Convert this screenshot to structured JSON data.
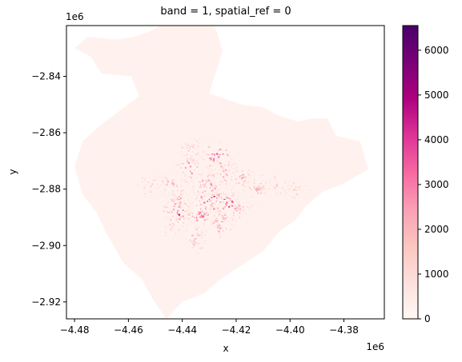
{
  "chart_data": {
    "type": "heatmap",
    "title": "band = 1, spatial_ref = 0",
    "xlabel": "x",
    "ylabel": "y",
    "x_offset": "1e6",
    "y_offset": "1e6",
    "xlim": [
      -4.483,
      -4.365
    ],
    "ylim": [
      -2.926,
      -2.822
    ],
    "x_ticks": [
      -4.48,
      -4.46,
      -4.44,
      -4.42,
      -4.4,
      -4.38
    ],
    "x_tick_labels": [
      "−4.48",
      "−4.46",
      "−4.44",
      "−4.42",
      "−4.40",
      "−4.38"
    ],
    "y_ticks": [
      -2.84,
      -2.86,
      -2.88,
      -2.9,
      -2.92
    ],
    "y_tick_labels": [
      "−2.84",
      "−2.86",
      "−2.88",
      "−2.90",
      "−2.92"
    ],
    "colorbar": {
      "min": 0,
      "max": 6550,
      "ticks": [
        0,
        1000,
        2000,
        3000,
        4000,
        5000,
        6000
      ],
      "tick_labels": [
        "0",
        "1000",
        "2000",
        "3000",
        "4000",
        "5000",
        "6000"
      ],
      "colors": [
        "#fff7f3",
        "#fde0dd",
        "#fcc5c0",
        "#fa9fb5",
        "#f768a1",
        "#dd3497",
        "#ae017e",
        "#7a0177",
        "#49006a"
      ]
    },
    "region_outline_data_units": [
      [
        -4.448,
        -2.822
      ],
      [
        -4.428,
        -2.822
      ],
      [
        -4.425,
        -2.831
      ],
      [
        -4.43,
        -2.846
      ],
      [
        -4.418,
        -2.85
      ],
      [
        -4.41,
        -2.851
      ],
      [
        -4.404,
        -2.854
      ],
      [
        -4.397,
        -2.856
      ],
      [
        -4.392,
        -2.855
      ],
      [
        -4.386,
        -2.855
      ],
      [
        -4.383,
        -2.861
      ],
      [
        -4.374,
        -2.863
      ],
      [
        -4.371,
        -2.873
      ],
      [
        -4.38,
        -2.878
      ],
      [
        -4.388,
        -2.881
      ],
      [
        -4.394,
        -2.886
      ],
      [
        -4.398,
        -2.891
      ],
      [
        -4.404,
        -2.895
      ],
      [
        -4.41,
        -2.902
      ],
      [
        -4.418,
        -2.907
      ],
      [
        -4.426,
        -2.912
      ],
      [
        -4.432,
        -2.917
      ],
      [
        -4.44,
        -2.92
      ],
      [
        -4.446,
        -2.926
      ],
      [
        -4.451,
        -2.919
      ],
      [
        -4.455,
        -2.912
      ],
      [
        -4.462,
        -2.906
      ],
      [
        -4.468,
        -2.896
      ],
      [
        -4.472,
        -2.888
      ],
      [
        -4.477,
        -2.882
      ],
      [
        -4.48,
        -2.872
      ],
      [
        -4.477,
        -2.863
      ],
      [
        -4.47,
        -2.857
      ],
      [
        -4.463,
        -2.852
      ],
      [
        -4.456,
        -2.847
      ],
      [
        -4.459,
        -2.84
      ],
      [
        -4.47,
        -2.839
      ],
      [
        -4.474,
        -2.833
      ],
      [
        -4.48,
        -2.83
      ],
      [
        -4.475,
        -2.826
      ],
      [
        -4.465,
        -2.827
      ],
      [
        -4.458,
        -2.826
      ],
      [
        -4.452,
        -2.824
      ]
    ],
    "hotspots": [
      {
        "x": -4.437,
        "y": -2.872,
        "v": 4200
      },
      {
        "x": -4.431,
        "y": -2.878,
        "v": 3600
      },
      {
        "x": -4.425,
        "y": -2.874,
        "v": 3300
      },
      {
        "x": -4.418,
        "y": -2.876,
        "v": 3100
      },
      {
        "x": -4.433,
        "y": -2.889,
        "v": 3900
      },
      {
        "x": -4.441,
        "y": -2.883,
        "v": 3000
      },
      {
        "x": -4.426,
        "y": -2.892,
        "v": 3500
      },
      {
        "x": -4.42,
        "y": -2.886,
        "v": 2800
      },
      {
        "x": -4.412,
        "y": -2.88,
        "v": 2500
      },
      {
        "x": -4.445,
        "y": -2.878,
        "v": 2600
      },
      {
        "x": -4.452,
        "y": -2.879,
        "v": 2200
      },
      {
        "x": -4.435,
        "y": -2.897,
        "v": 2700
      },
      {
        "x": -4.428,
        "y": -2.868,
        "v": 4800
      },
      {
        "x": -4.437,
        "y": -2.865,
        "v": 2300
      },
      {
        "x": -4.405,
        "y": -2.878,
        "v": 2000
      },
      {
        "x": -4.398,
        "y": -2.88,
        "v": 1800
      },
      {
        "x": -4.444,
        "y": -2.893,
        "v": 1900
      },
      {
        "x": -4.43,
        "y": -2.883,
        "v": 6500
      },
      {
        "x": -4.442,
        "y": -2.888,
        "v": 5200
      },
      {
        "x": -4.424,
        "y": -2.885,
        "v": 5500
      }
    ]
  }
}
